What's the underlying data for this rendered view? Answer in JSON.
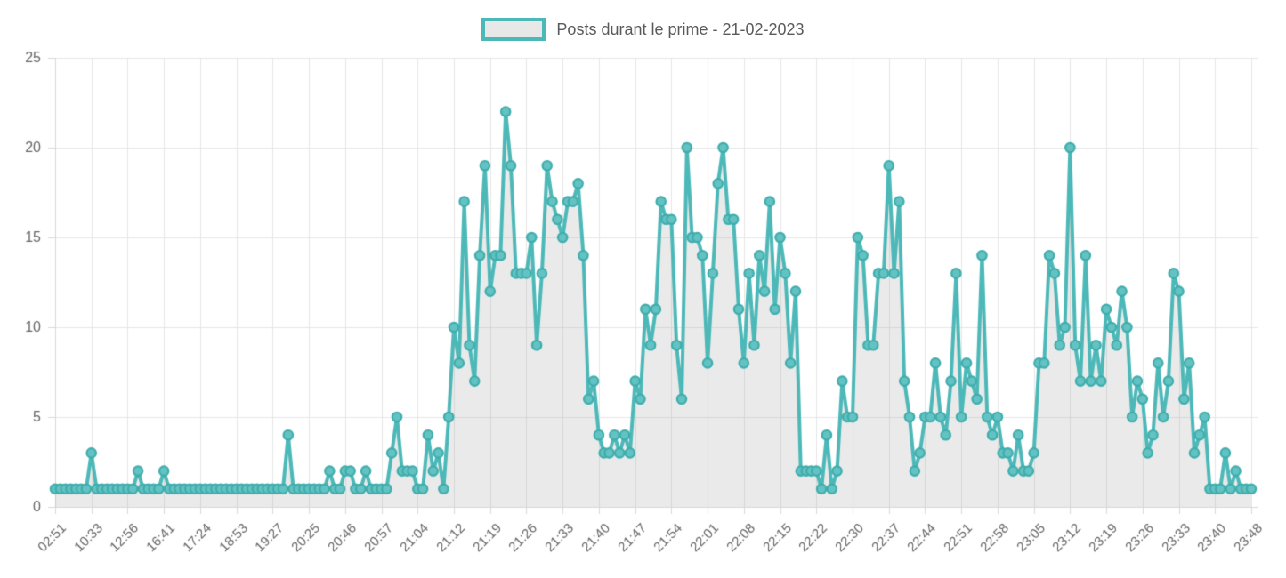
{
  "chart_data": {
    "type": "line",
    "title": "Posts durant le prime - 21-02-2023",
    "legend": {
      "label": "Posts durant le prime - 21-02-2023",
      "position": "top"
    },
    "xlabel": "",
    "ylabel": "",
    "ylim": [
      0,
      25
    ],
    "y_ticks": [
      0,
      5,
      10,
      15,
      20,
      25
    ],
    "grid": true,
    "x_tick_labels": [
      "02:51",
      "10:33",
      "12:56",
      "16:41",
      "17:24",
      "18:53",
      "19:27",
      "20:25",
      "20:46",
      "20:57",
      "21:04",
      "21:12",
      "21:19",
      "21:26",
      "21:33",
      "21:40",
      "21:47",
      "21:54",
      "22:01",
      "22:08",
      "22:15",
      "22:22",
      "22:30",
      "22:37",
      "22:44",
      "22:51",
      "22:58",
      "23:05",
      "23:12",
      "23:19",
      "23:26",
      "23:33",
      "23:40",
      "23:48"
    ],
    "points_per_tick": 7,
    "values": [
      1,
      1,
      1,
      1,
      1,
      1,
      1,
      3,
      1,
      1,
      1,
      1,
      1,
      1,
      1,
      1,
      2,
      1,
      1,
      1,
      1,
      2,
      1,
      1,
      1,
      1,
      1,
      1,
      1,
      1,
      1,
      1,
      1,
      1,
      1,
      1,
      1,
      1,
      1,
      1,
      1,
      1,
      1,
      1,
      1,
      4,
      1,
      1,
      1,
      1,
      1,
      1,
      1,
      2,
      1,
      1,
      2,
      2,
      1,
      1,
      2,
      1,
      1,
      1,
      1,
      3,
      5,
      2,
      2,
      2,
      1,
      1,
      4,
      2,
      3,
      1,
      5,
      10,
      8,
      17,
      9,
      7,
      14,
      19,
      12,
      14,
      14,
      22,
      19,
      13,
      13,
      13,
      15,
      9,
      13,
      19,
      17,
      16,
      15,
      17,
      17,
      18,
      14,
      6,
      7,
      4,
      3,
      3,
      4,
      3,
      4,
      3,
      7,
      6,
      11,
      9,
      11,
      17,
      16,
      16,
      9,
      6,
      20,
      15,
      15,
      14,
      8,
      13,
      18,
      20,
      16,
      16,
      11,
      8,
      13,
      9,
      14,
      12,
      17,
      11,
      15,
      13,
      8,
      12,
      2,
      2,
      2,
      2,
      1,
      4,
      1,
      2,
      7,
      5,
      5,
      15,
      14,
      9,
      9,
      13,
      13,
      19,
      13,
      17,
      7,
      5,
      2,
      3,
      5,
      5,
      8,
      5,
      4,
      7,
      13,
      5,
      8,
      7,
      6,
      14,
      5,
      4,
      5,
      3,
      3,
      2,
      4,
      2,
      2,
      3,
      8,
      8,
      14,
      13,
      9,
      10,
      20,
      9,
      7,
      14,
      7,
      9,
      7,
      11,
      10,
      9,
      12,
      10,
      5,
      7,
      6,
      3,
      4,
      8,
      5,
      7,
      13,
      12,
      6,
      8,
      3,
      4,
      5,
      1,
      1,
      1,
      3,
      1,
      2,
      1,
      1,
      1
    ],
    "colors": {
      "line": "#4db8b8",
      "point_fill": "#63c2c2",
      "point_stroke": "#3fadad",
      "area_fill": "rgba(160,160,160,0.22)",
      "grid": "#e6e6e6",
      "axis": "#d8d8d8",
      "tick_text": "#666666",
      "legend_text": "#595a5c",
      "legend_swatch_fill": "#e8e8e8"
    }
  }
}
